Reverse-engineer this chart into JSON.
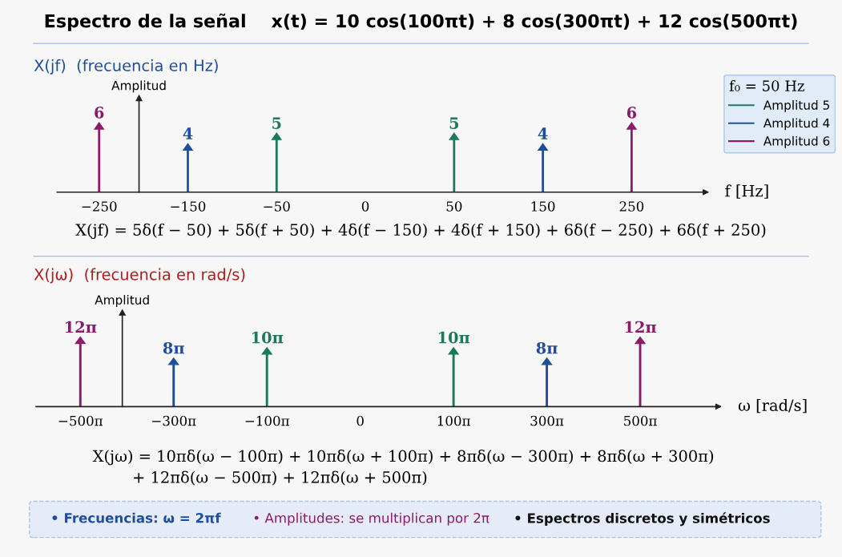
{
  "chart_data": [
    {
      "type": "bar",
      "title": "Espectro de la señal    x(t) = 10 cos(100πt) + 8 cos(300πt) + 12 cos(500πt)",
      "subtitle": "X(jf)  (frecuencia en Hz)",
      "xlabel": "f [Hz]",
      "ylabel": "Amplitud",
      "legend_title": "f₀ = 50 Hz",
      "legend": "top right",
      "marker": "triangle",
      "data_labels": true,
      "categories": [
        "−250",
        "−150",
        "−50",
        "0",
        "50",
        "150",
        "250"
      ],
      "series": [
        {
          "name": "Amplitud 5",
          "color": "#1b7a5a",
          "values": [
            null,
            null,
            5,
            null,
            5,
            null,
            null
          ]
        },
        {
          "name": "Amplitud 4",
          "color": "#1f4e9c",
          "values": [
            null,
            4,
            null,
            null,
            null,
            4,
            null
          ]
        },
        {
          "name": "Amplitud 6",
          "color": "#8b1a6b",
          "values": [
            6,
            null,
            null,
            null,
            null,
            null,
            6
          ]
        }
      ],
      "annotations": [
        "X(jf) = 5δ(f − 50) + 5δ(f + 50) + 4δ(f − 150) + 4δ(f + 150) + 6δ(f − 250) + 6δ(f + 250)"
      ]
    },
    {
      "type": "bar",
      "title": "X(jω)  (frecuencia en rad/s)",
      "xlabel": "ω [rad/s]",
      "ylabel": "Amplitud",
      "marker": "triangle",
      "categories": [
        "−500π",
        "−300π",
        "−100π",
        "0",
        "100π",
        "300π",
        "500π"
      ],
      "series": [
        {
          "color": "#1b7a5a",
          "values": [
            null,
            null,
            31.42,
            null,
            31.42,
            null,
            null
          ],
          "value_labels": [
            null,
            null,
            "10π",
            null,
            "10π",
            null,
            null
          ]
        },
        {
          "color": "#1f4e9c",
          "values": [
            null,
            25.13,
            null,
            null,
            null,
            25.13,
            null
          ],
          "value_labels": [
            null,
            "8π",
            null,
            null,
            null,
            "8π",
            null
          ]
        },
        {
          "color": "#8b1a6b",
          "values": [
            37.7,
            null,
            null,
            null,
            null,
            null,
            37.7
          ],
          "value_labels": [
            "12π",
            null,
            null,
            null,
            null,
            null,
            "12π"
          ]
        }
      ],
      "annotations": [
        "X(jω) = 10πδ(ω − 100π) + 10πδ(ω + 100π) + 8πδ(ω − 300π) + 8πδ(ω + 300π)\n        + 12πδ(ω − 500π) + 12πδ(ω + 500π)",
        "• Frecuencias: ω = 2πf",
        "• Amplitudes: se multiplican por 2π",
        "• Espectros discretos y simétricos"
      ]
    }
  ]
}
